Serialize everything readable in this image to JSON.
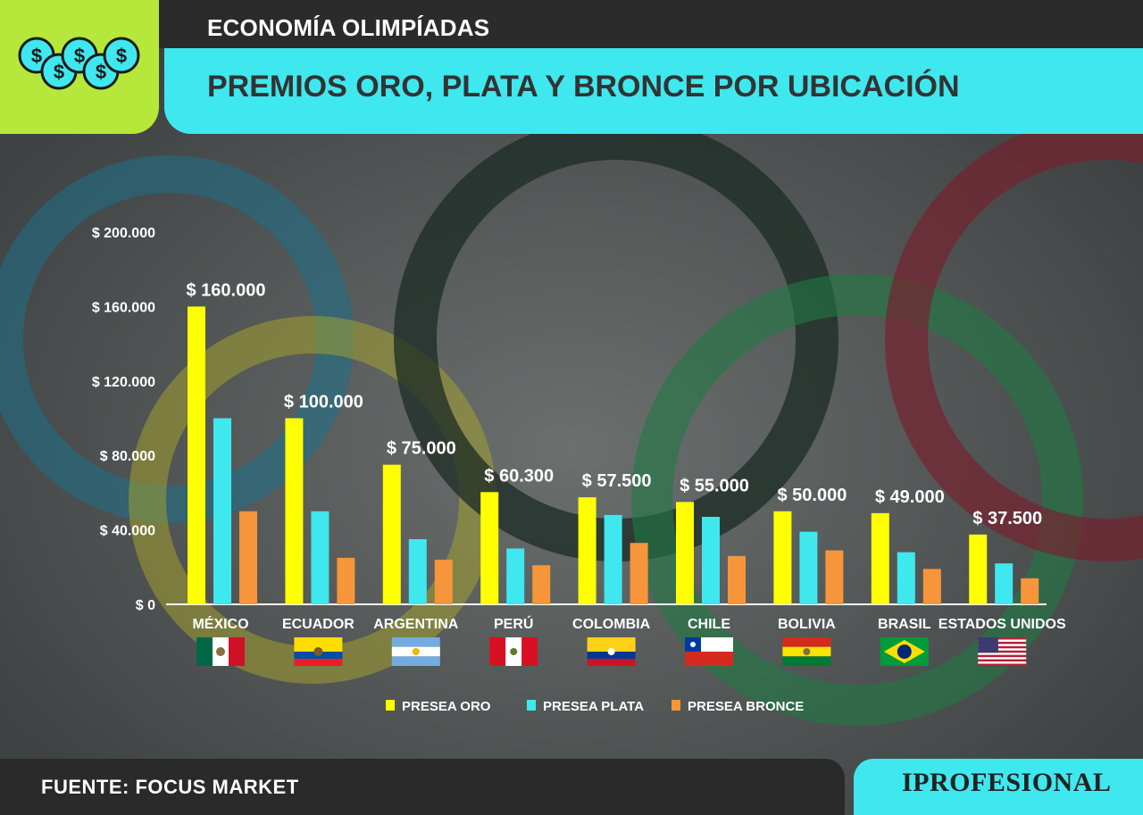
{
  "header": {
    "kicker": "ECONOMÍA OLIMPÍADAS",
    "title": "PREMIOS ORO, PLATA Y BRONCE POR UBICACIÓN"
  },
  "logo_icon": "coins-dollar-icon",
  "footer": {
    "source": "FUENTE: FOCUS MARKET",
    "brand": "IPROFESIONAL"
  },
  "colors": {
    "oro": "#ffff00",
    "plata": "#3fe8ee",
    "bronce": "#f7953a",
    "accent_green": "#b5e83a",
    "accent_cyan": "#3fe8ee"
  },
  "chart_data": {
    "type": "bar",
    "categories": [
      "MÉXICO",
      "ECUADOR",
      "ARGENTINA",
      "PERÚ",
      "COLOMBIA",
      "CHILE",
      "BOLIVIA",
      "BRASIL",
      "ESTADOS UNIDOS"
    ],
    "flags": [
      "flag-mexico-icon",
      "flag-ecuador-icon",
      "flag-argentina-icon",
      "flag-peru-icon",
      "flag-colombia-icon",
      "flag-chile-icon",
      "flag-bolivia-icon",
      "flag-brasil-icon",
      "flag-usa-icon"
    ],
    "series": [
      {
        "name": "PRESEA ORO",
        "values": [
          160000,
          100000,
          75000,
          60300,
          57500,
          55000,
          50000,
          49000,
          37500
        ]
      },
      {
        "name": "PRESEA PLATA",
        "values": [
          100000,
          50000,
          35000,
          30000,
          48000,
          47000,
          39000,
          28000,
          22000
        ]
      },
      {
        "name": "PRESEA BRONCE",
        "values": [
          50000,
          25000,
          24000,
          21000,
          33000,
          26000,
          29000,
          19000,
          14000
        ]
      }
    ],
    "data_labels": [
      "$ 160.000",
      "$ 100.000",
      "$ 75.000",
      "$ 60.300",
      "$ 57.500",
      "$ 55.000",
      "$ 50.000",
      "$ 49.000",
      "$ 37.500"
    ],
    "yticks": [
      0,
      40000,
      80000,
      120000,
      160000,
      200000
    ],
    "ytick_labels": [
      "$ 0",
      "$ 40.000",
      "$ 80.000",
      "$ 120.000",
      "$ 160.000",
      "$ 200.000"
    ],
    "ylim": [
      0,
      200000
    ],
    "grid": false,
    "legend_position": "bottom-center"
  }
}
